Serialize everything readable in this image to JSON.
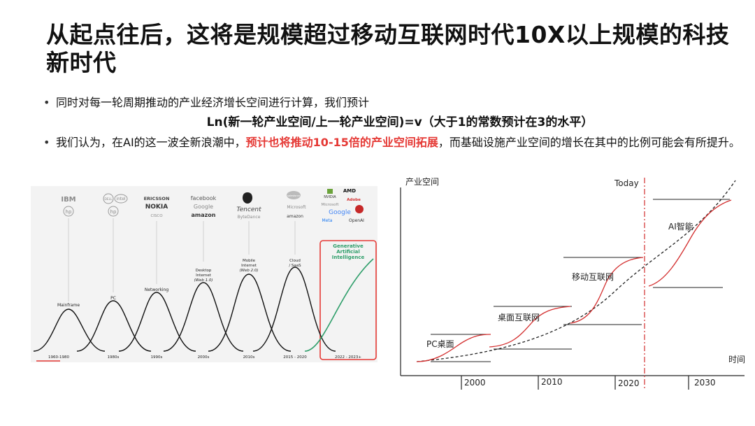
{
  "slide": {
    "title": "从起点往后，这将是规模超过移动互联网时代10X以上规模的科技新时代",
    "bullet1": "同时对每一轮周期推动的产业经济增长空间进行计算，我们预计",
    "formula": "Ln(新一轮产业空间/上一轮产业空间)=v（大于1的常数预计在3的水平）",
    "bullet2_pre": "我们认为，在AI的这一波全新浪潮中，",
    "bullet2_highlight": "预计也将推动10-15倍的产业空间拓展",
    "bullet2_post": "，而基础设施产业空间的增长在其中的比例可能会有所提升。"
  },
  "left_figure": {
    "eras": [
      {
        "period": "1960-1980",
        "label": "Mainframe",
        "companies": [
          "IBM",
          "hp"
        ]
      },
      {
        "period": "1980s",
        "label": "PC",
        "companies": [
          "DELL",
          "intel",
          "hp"
        ]
      },
      {
        "period": "1990s",
        "label": "Networking",
        "companies": [
          "ERICSSON",
          "NOKIA",
          "CISCO"
        ]
      },
      {
        "period": "2000s",
        "label": "Desktop Internet (Web 1.0)",
        "companies": [
          "facebook",
          "Google",
          "amazon"
        ]
      },
      {
        "period": "2010s",
        "label": "Mobile Internet (Web 2.0)",
        "companies": [
          "Tencent",
          "ByteDance"
        ]
      },
      {
        "period": "2015 - 2020",
        "label": "Cloud / SaaS",
        "companies": [
          "salesforce",
          "Microsoft",
          "amazon"
        ]
      },
      {
        "period": "2022 - 2023+",
        "label": "Generative Artificial Intelligence",
        "companies": [
          "NVIDIA",
          "AMD",
          "Microsoft",
          "Adobe",
          "Google",
          "Meta",
          "OpenAI"
        ]
      }
    ],
    "highlight_color": "#e53935",
    "curve_color": "#111111",
    "ai_curve_color": "#2e9e6a"
  },
  "right_figure": {
    "ylabel": "产业空间",
    "xlabel": "时间",
    "today_label": "Today",
    "ticks": [
      "2000",
      "2010",
      "2020",
      "2030"
    ],
    "stage_labels": [
      "PC桌面",
      "桌面互联网",
      "移动互联网",
      "AI智能"
    ],
    "curve_color": "#d32f2f"
  }
}
